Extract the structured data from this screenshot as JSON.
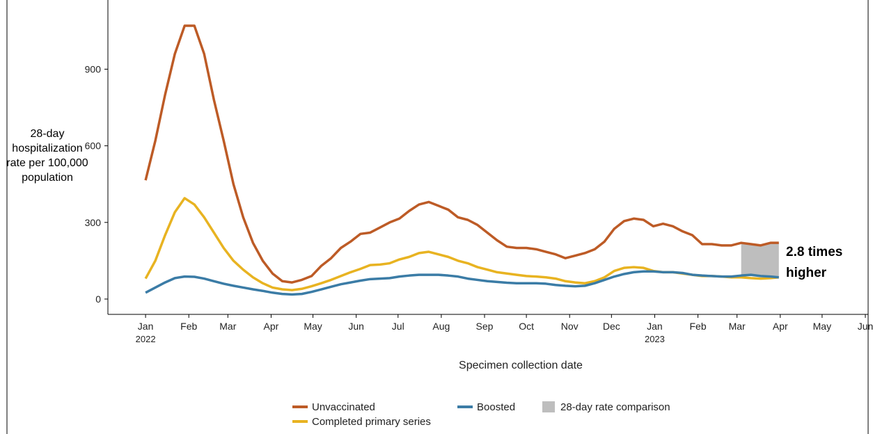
{
  "chart_data": {
    "type": "line",
    "y_label": "28-day hospitalization rate per 100,000 population",
    "x_label": "Specimen collection date",
    "annotation": "2.8 times higher",
    "x": [
      "2022-01-01",
      "2022-01-08",
      "2022-01-15",
      "2022-01-22",
      "2022-01-29",
      "2022-02-05",
      "2022-02-12",
      "2022-02-19",
      "2022-02-26",
      "2022-03-05",
      "2022-03-12",
      "2022-03-19",
      "2022-03-26",
      "2022-04-02",
      "2022-04-09",
      "2022-04-16",
      "2022-04-23",
      "2022-04-30",
      "2022-05-07",
      "2022-05-14",
      "2022-05-21",
      "2022-05-28",
      "2022-06-04",
      "2022-06-11",
      "2022-06-18",
      "2022-06-25",
      "2022-07-02",
      "2022-07-09",
      "2022-07-16",
      "2022-07-23",
      "2022-07-30",
      "2022-08-06",
      "2022-08-13",
      "2022-08-20",
      "2022-08-27",
      "2022-09-03",
      "2022-09-10",
      "2022-09-17",
      "2022-09-24",
      "2022-10-01",
      "2022-10-08",
      "2022-10-15",
      "2022-10-22",
      "2022-10-29",
      "2022-11-05",
      "2022-11-12",
      "2022-11-19",
      "2022-11-26",
      "2022-12-03",
      "2022-12-10",
      "2022-12-17",
      "2022-12-24",
      "2022-12-31",
      "2023-01-07",
      "2023-01-14",
      "2023-01-21",
      "2023-01-28",
      "2023-02-04",
      "2023-02-11",
      "2023-02-18",
      "2023-02-25",
      "2023-03-04",
      "2023-03-11",
      "2023-03-18",
      "2023-03-25",
      "2023-03-31"
    ],
    "series": [
      {
        "name": "Unvaccinated",
        "color": "#bd5b26",
        "values": [
          465,
          620,
          800,
          960,
          1070,
          1070,
          960,
          780,
          620,
          450,
          320,
          220,
          150,
          100,
          70,
          65,
          75,
          90,
          130,
          160,
          200,
          225,
          255,
          260,
          280,
          300,
          315,
          345,
          370,
          380,
          365,
          350,
          320,
          310,
          290,
          260,
          230,
          205,
          200,
          200,
          195,
          185,
          175,
          160,
          170,
          180,
          195,
          225,
          275,
          305,
          315,
          310,
          285,
          295,
          285,
          265,
          250,
          215,
          215,
          210,
          210,
          220,
          215,
          210,
          220,
          220
        ]
      },
      {
        "name": "Completed primary series",
        "color": "#e8b321",
        "values": [
          80,
          150,
          250,
          340,
          395,
          370,
          320,
          260,
          200,
          150,
          115,
          85,
          62,
          45,
          38,
          35,
          40,
          50,
          62,
          75,
          90,
          105,
          118,
          133,
          135,
          140,
          155,
          165,
          180,
          185,
          175,
          165,
          150,
          140,
          125,
          115,
          105,
          100,
          95,
          90,
          88,
          85,
          80,
          70,
          65,
          62,
          70,
          85,
          110,
          122,
          125,
          122,
          110,
          105,
          105,
          100,
          95,
          90,
          90,
          88,
          85,
          85,
          82,
          80,
          82,
          85
        ]
      },
      {
        "name": "Boosted",
        "color": "#3b7ca6",
        "values": [
          25,
          45,
          65,
          82,
          88,
          87,
          80,
          70,
          60,
          52,
          45,
          38,
          32,
          25,
          20,
          18,
          20,
          28,
          38,
          48,
          58,
          65,
          72,
          78,
          80,
          82,
          88,
          92,
          95,
          95,
          95,
          92,
          88,
          80,
          75,
          70,
          67,
          64,
          62,
          62,
          62,
          60,
          55,
          52,
          50,
          52,
          62,
          75,
          88,
          98,
          105,
          108,
          108,
          105,
          105,
          102,
          95,
          92,
          90,
          88,
          88,
          92,
          95,
          90,
          88,
          85
        ]
      }
    ],
    "comparison": {
      "name": "28-day rate comparison",
      "color": "#bebebe",
      "x": [
        "2023-03-04",
        "2023-03-31"
      ]
    },
    "xlim": [
      "2021-12-05",
      "2023-06-03"
    ],
    "xticks": [
      {
        "value": "2022-01-01",
        "label": "Jan",
        "year": "2022"
      },
      {
        "value": "2022-02-01",
        "label": "Feb"
      },
      {
        "value": "2022-03-01",
        "label": "Mar"
      },
      {
        "value": "2022-04-01",
        "label": "Apr"
      },
      {
        "value": "2022-05-01",
        "label": "May"
      },
      {
        "value": "2022-06-01",
        "label": "Jun"
      },
      {
        "value": "2022-07-01",
        "label": "Jul"
      },
      {
        "value": "2022-08-01",
        "label": "Aug"
      },
      {
        "value": "2022-09-01",
        "label": "Sep"
      },
      {
        "value": "2022-10-01",
        "label": "Oct"
      },
      {
        "value": "2022-11-01",
        "label": "Nov"
      },
      {
        "value": "2022-12-01",
        "label": "Dec"
      },
      {
        "value": "2023-01-01",
        "label": "Jan",
        "year": "2023"
      },
      {
        "value": "2023-02-01",
        "label": "Feb"
      },
      {
        "value": "2023-03-01",
        "label": "Mar"
      },
      {
        "value": "2023-04-01",
        "label": "Apr"
      },
      {
        "value": "2023-05-01",
        "label": "May"
      },
      {
        "value": "2023-06-01",
        "label": "Jun"
      }
    ],
    "ylim": [
      -60,
      1130
    ],
    "yticks": [
      0,
      300,
      600,
      900
    ],
    "grid": false
  }
}
